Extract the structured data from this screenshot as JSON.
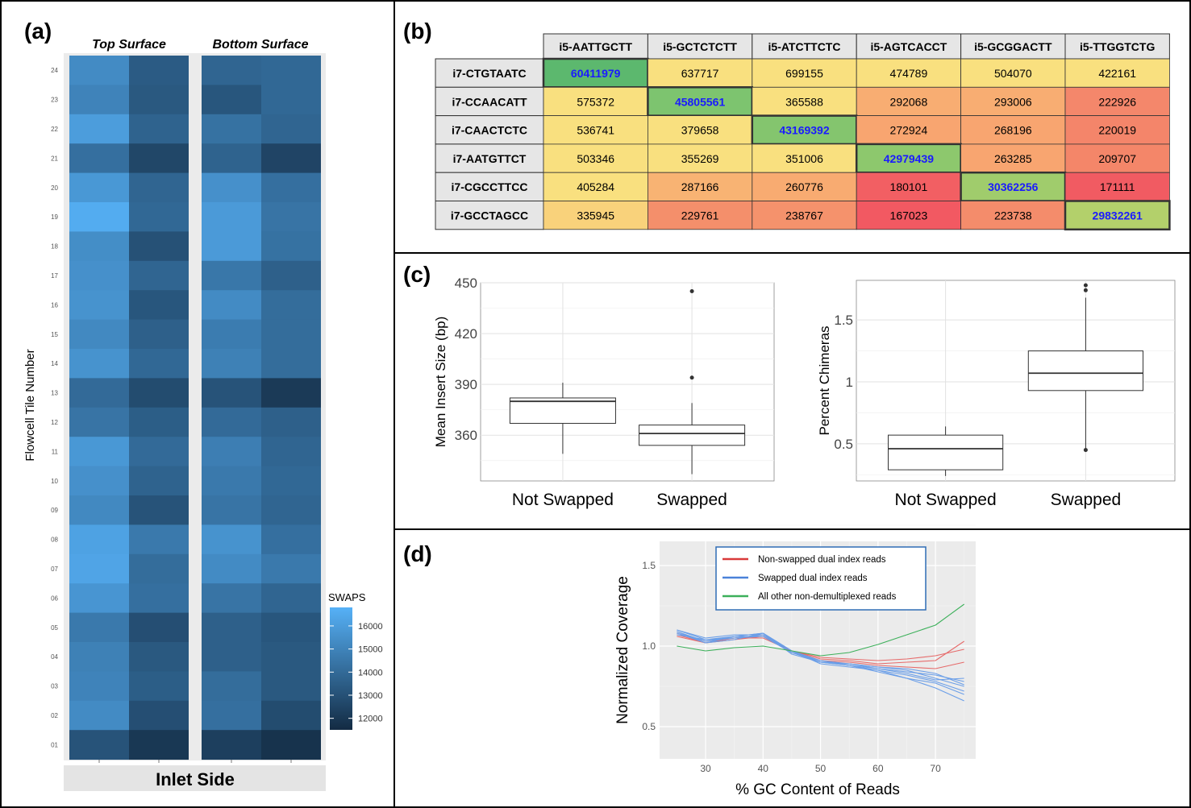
{
  "panels": {
    "a": {
      "label": "(a)",
      "surfaces": [
        "Top Surface",
        "Bottom Surface"
      ],
      "ylabel": "Flowcell Tile Number",
      "tiles": [
        "24",
        "23",
        "22",
        "21",
        "20",
        "19",
        "18",
        "17",
        "16",
        "15",
        "14",
        "13",
        "12",
        "11",
        "10",
        "09",
        "08",
        "07",
        "06",
        "05",
        "04",
        "03",
        "02",
        "01"
      ],
      "footer": "Inlet Side",
      "legend_title": "SWAPS",
      "legend_ticks": [
        16000,
        15000,
        14000,
        13000,
        12000
      ],
      "colors": {
        "low": "#132b43",
        "high": "#56b1f7"
      }
    },
    "b": {
      "label": "(b)"
    },
    "c": {
      "label": "(c)"
    },
    "d": {
      "label": "(d)"
    }
  },
  "chart_data": [
    {
      "type": "heatmap",
      "panel": "a",
      "legend": "SWAPS",
      "value_range": [
        11500,
        16800
      ],
      "rows": [
        "24",
        "23",
        "22",
        "21",
        "20",
        "19",
        "18",
        "17",
        "16",
        "15",
        "14",
        "13",
        "12",
        "11",
        "10",
        "09",
        "08",
        "07",
        "06",
        "05",
        "04",
        "03",
        "02",
        "01"
      ],
      "columns": [
        "Top Surface 1",
        "Top Surface 2",
        "Bottom Surface 1",
        "Bottom Surface 2"
      ],
      "values": [
        [
          15300,
          13400,
          13800,
          13900
        ],
        [
          15000,
          13300,
          13200,
          13900
        ],
        [
          16000,
          13700,
          14300,
          13800
        ],
        [
          14200,
          12600,
          13700,
          12500
        ],
        [
          15800,
          13800,
          15500,
          14200
        ],
        [
          16600,
          13900,
          15900,
          14400
        ],
        [
          15400,
          13000,
          15900,
          14300
        ],
        [
          15500,
          13800,
          14500,
          13600
        ],
        [
          15600,
          13200,
          15300,
          14100
        ],
        [
          15200,
          13600,
          14700,
          14100
        ],
        [
          15600,
          13900,
          14900,
          14100
        ],
        [
          14000,
          12800,
          13100,
          12100
        ],
        [
          14400,
          13500,
          14000,
          13600
        ],
        [
          15800,
          14000,
          14800,
          13800
        ],
        [
          15500,
          13700,
          14600,
          13900
        ],
        [
          15200,
          13100,
          14400,
          13800
        ],
        [
          16200,
          14600,
          15600,
          14200
        ],
        [
          16300,
          14100,
          15300,
          14600
        ],
        [
          15700,
          14200,
          14400,
          13800
        ],
        [
          14600,
          12900,
          13600,
          13200
        ],
        [
          14900,
          13300,
          13600,
          13300
        ],
        [
          15000,
          13500,
          14100,
          13300
        ],
        [
          15300,
          12900,
          14200,
          12800
        ],
        [
          13100,
          12000,
          12300,
          11800
        ]
      ]
    },
    {
      "type": "table",
      "panel": "b",
      "columns": [
        "i5-AATTGCTT",
        "i5-GCTCTCTT",
        "i5-ATCTTCTC",
        "i5-AGTCACCT",
        "i5-GCGGACTT",
        "i5-TTGGTCTG"
      ],
      "rows": [
        "i7-CTGTAATC",
        "i7-CCAACATT",
        "i7-CAACTCTC",
        "i7-AATGTTCT",
        "i7-CGCCTTCC",
        "i7-GCCTAGCC"
      ],
      "values": [
        [
          "60411979",
          "637717",
          "699155",
          "474789",
          "504070",
          "422161"
        ],
        [
          "575372",
          "45805561",
          "365588",
          "292068",
          "293006",
          "222926"
        ],
        [
          "536741",
          "379658",
          "43169392",
          "272924",
          "268196",
          "220019"
        ],
        [
          "503346",
          "355269",
          "351006",
          "42979439",
          "263285",
          "209707"
        ],
        [
          "405284",
          "287166",
          "260776",
          "180101",
          "30362256",
          "171111"
        ],
        [
          "335945",
          "229761",
          "238767",
          "167023",
          "223738",
          "29832261"
        ]
      ],
      "cell_colors": [
        [
          "#5cb86e",
          "#f9e07f",
          "#f9e07f",
          "#f9e07f",
          "#f9e07f",
          "#f9e07f"
        ],
        [
          "#f9e07f",
          "#7dc46f",
          "#f9e07f",
          "#f8ad72",
          "#f8ad72",
          "#f4876b"
        ],
        [
          "#f9e07f",
          "#f9e07f",
          "#84c56e",
          "#f8a570",
          "#f8a570",
          "#f4856a"
        ],
        [
          "#f9e07f",
          "#f9e07f",
          "#f9e07f",
          "#8dc86d",
          "#f8a570",
          "#f48669"
        ],
        [
          "#f9e07f",
          "#f8b373",
          "#f8ab71",
          "#f25f63",
          "#a0cc6c",
          "#f15b62"
        ],
        [
          "#f9d27b",
          "#f48f6b",
          "#f5926c",
          "#f25962",
          "#f48c6b",
          "#b3d06b"
        ]
      ]
    },
    {
      "type": "boxplot",
      "panel": "c",
      "ylabel": "Mean Insert Size (bp)",
      "categories": [
        "Not Swapped",
        "Swapped"
      ],
      "ylim": [
        333,
        450
      ],
      "yticks": [
        360,
        390,
        420,
        450
      ],
      "boxes": [
        {
          "min": 349,
          "q1": 367,
          "median": 380,
          "q3": 382,
          "max": 391,
          "outliers": []
        },
        {
          "min": 337,
          "q1": 354,
          "median": 361,
          "q3": 366,
          "max": 379,
          "outliers": [
            394,
            445
          ]
        }
      ]
    },
    {
      "type": "boxplot",
      "panel": "c",
      "ylabel": "Percent Chimeras",
      "categories": [
        "Not Swapped",
        "Swapped"
      ],
      "ylim": [
        0.2,
        1.82
      ],
      "yticks": [
        0.5,
        1.0,
        1.5
      ],
      "boxes": [
        {
          "min": 0.24,
          "q1": 0.29,
          "median": 0.46,
          "q3": 0.57,
          "max": 0.64,
          "outliers": []
        },
        {
          "min": 0.45,
          "q1": 0.93,
          "median": 1.07,
          "q3": 1.25,
          "max": 1.68,
          "outliers": [
            0.45,
            1.74,
            1.78
          ]
        }
      ]
    },
    {
      "type": "line",
      "panel": "d",
      "xlabel": "% GC Content of Reads",
      "ylabel": "Normalized Coverage",
      "xlim": [
        22,
        77
      ],
      "ylim": [
        0.3,
        1.65
      ],
      "xticks": [
        30,
        40,
        50,
        60,
        70
      ],
      "yticks": [
        0.5,
        1.0,
        1.5
      ],
      "legend": [
        "Non-swapped dual index reads",
        "Swapped dual index reads",
        "All other non-demultiplexed reads"
      ],
      "x": [
        25,
        30,
        35,
        40,
        45,
        50,
        55,
        60,
        65,
        70,
        75
      ],
      "series": [
        {
          "name": "Non-swapped dual index reads",
          "color": "#e66a6a",
          "values": [
            1.07,
            1.02,
            1.05,
            1.05,
            0.97,
            0.93,
            0.92,
            0.91,
            0.92,
            0.94,
            0.98
          ]
        },
        {
          "name": "Non-swapped dual index reads",
          "color": "#e66a6a",
          "values": [
            1.08,
            1.03,
            1.05,
            1.07,
            0.96,
            0.91,
            0.9,
            0.88,
            0.87,
            0.86,
            0.9
          ]
        },
        {
          "name": "Non-swapped dual index reads",
          "color": "#e66a6a",
          "values": [
            1.06,
            1.02,
            1.04,
            1.06,
            0.97,
            0.92,
            0.91,
            0.89,
            0.9,
            0.91,
            1.03
          ]
        },
        {
          "name": "Swapped dual index reads",
          "color": "#6a9ee8",
          "values": [
            1.1,
            1.04,
            1.06,
            1.08,
            0.97,
            0.9,
            0.88,
            0.85,
            0.82,
            0.78,
            0.72
          ]
        },
        {
          "name": "Swapped dual index reads",
          "color": "#6a9ee8",
          "values": [
            1.08,
            1.03,
            1.05,
            1.07,
            0.96,
            0.9,
            0.89,
            0.87,
            0.85,
            0.8,
            0.75
          ]
        },
        {
          "name": "Swapped dual index reads",
          "color": "#6a9ee8",
          "values": [
            1.09,
            1.02,
            1.06,
            1.08,
            0.97,
            0.91,
            0.88,
            0.84,
            0.8,
            0.74,
            0.66
          ]
        },
        {
          "name": "Swapped dual index reads",
          "color": "#6a9ee8",
          "values": [
            1.07,
            1.04,
            1.05,
            1.06,
            0.96,
            0.91,
            0.89,
            0.86,
            0.84,
            0.82,
            0.78
          ]
        },
        {
          "name": "Swapped dual index reads",
          "color": "#6a9ee8",
          "values": [
            1.1,
            1.05,
            1.07,
            1.07,
            0.97,
            0.89,
            0.87,
            0.85,
            0.8,
            0.77,
            0.7
          ]
        },
        {
          "name": "Swapped dual index reads",
          "color": "#6a9ee8",
          "values": [
            1.08,
            1.02,
            1.04,
            1.08,
            0.95,
            0.9,
            0.88,
            0.86,
            0.83,
            0.79,
            0.8
          ]
        },
        {
          "name": "Swapped dual index reads",
          "color": "#6a9ee8",
          "values": [
            1.09,
            1.03,
            1.06,
            1.06,
            0.96,
            0.9,
            0.89,
            0.87,
            0.86,
            0.83,
            0.76
          ]
        },
        {
          "name": "All other non-demultiplexed reads",
          "color": "#3cb05a",
          "values": [
            1.0,
            0.97,
            0.99,
            1.0,
            0.97,
            0.94,
            0.96,
            1.01,
            1.07,
            1.13,
            1.26
          ]
        }
      ]
    }
  ]
}
